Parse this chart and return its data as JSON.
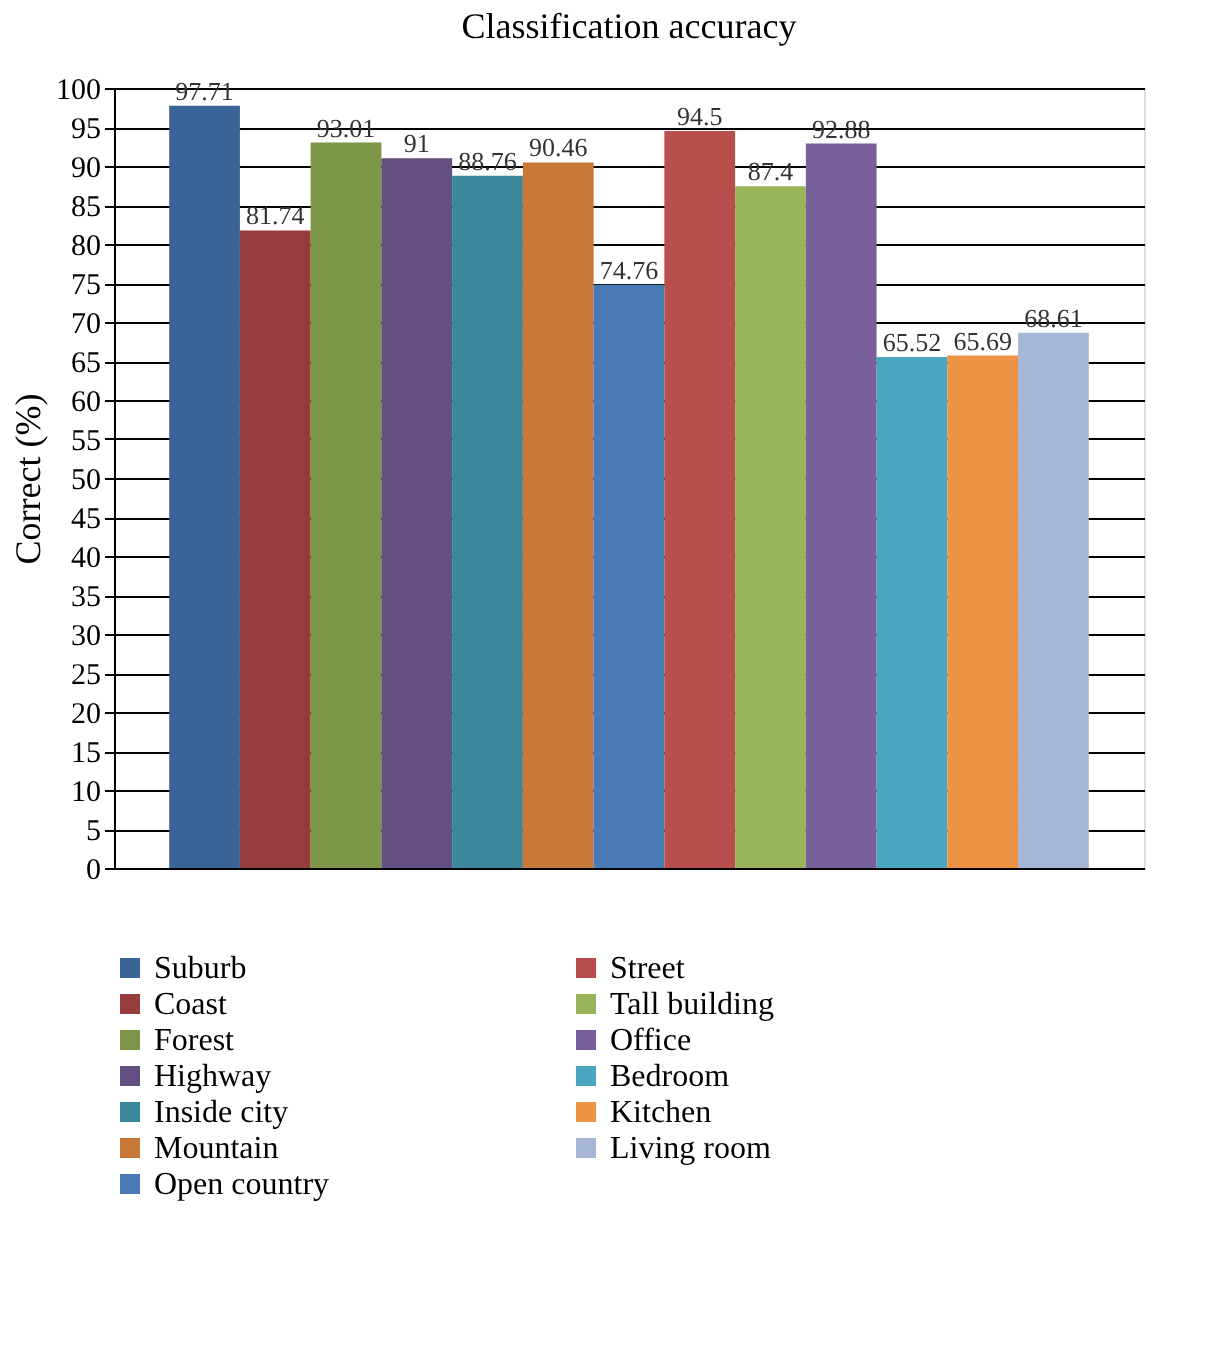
{
  "chart_data": {
    "type": "bar",
    "title": "Classification accuracy",
    "ylabel": "Correct (%)",
    "categories": [
      null
    ],
    "series": [
      {
        "name": "Suburb",
        "color": "#3b6496",
        "values": [
          97.71
        ]
      },
      {
        "name": "Coast",
        "color": "#963c3c",
        "values": [
          81.74
        ]
      },
      {
        "name": "Forest",
        "color": "#7a9646",
        "values": [
          93.01
        ]
      },
      {
        "name": "Highway",
        "color": "#644f82",
        "values": [
          91
        ]
      },
      {
        "name": "Inside city",
        "color": "#3b879b",
        "values": [
          88.76
        ]
      },
      {
        "name": "Mountain",
        "color": "#c87938",
        "values": [
          90.46
        ]
      },
      {
        "name": "Open country",
        "color": "#4a7ab5",
        "values": [
          74.76
        ]
      },
      {
        "name": "Street",
        "color": "#b94f4c",
        "values": [
          94.5
        ]
      },
      {
        "name": "Tall building",
        "color": "#98b55a",
        "values": [
          87.4
        ]
      },
      {
        "name": "Office",
        "color": "#7a609b",
        "values": [
          92.88
        ]
      },
      {
        "name": "Bedroom",
        "color": "#4aa5bf",
        "values": [
          65.52
        ]
      },
      {
        "name": "Kitchen",
        "color": "#ec9346",
        "values": [
          65.69
        ]
      },
      {
        "name": "Living room",
        "color": "#a6b8d5",
        "values": [
          68.61
        ]
      }
    ],
    "ylim": [
      0,
      100
    ],
    "yticks": [
      0,
      5,
      10,
      15,
      20,
      25,
      30,
      35,
      40,
      45,
      50,
      55,
      60,
      65,
      70,
      75,
      80,
      85,
      90,
      95,
      100
    ],
    "grid": "y",
    "legend": "bottom",
    "data_labels": true
  }
}
